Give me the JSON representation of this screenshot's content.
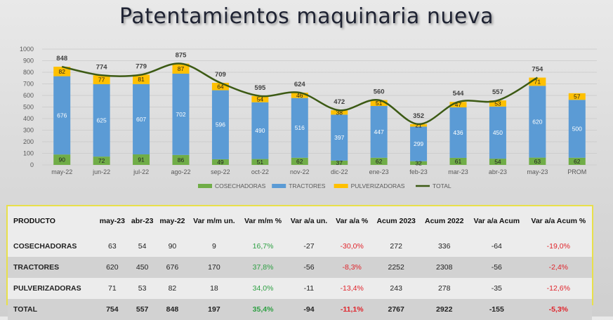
{
  "title": "Patentamientos maquinaria nueva",
  "colors": {
    "cosechadoras": "#70ad47",
    "tractores": "#5b9bd5",
    "pulverizadoras": "#ffc000",
    "total": "#3c5a14",
    "positive": "#2ea043",
    "negative": "#e0242b",
    "table_border": "#e8e04a"
  },
  "chart_data": {
    "type": "bar",
    "stacked": true,
    "categories": [
      "may-22",
      "jun-22",
      "jul-22",
      "ago-22",
      "sep-22",
      "oct-22",
      "nov-22",
      "dic-22",
      "ene-23",
      "feb-23",
      "mar-23",
      "abr-23",
      "may-23",
      "PROM"
    ],
    "series": [
      {
        "name": "COSECHADORAS",
        "values": [
          90,
          72,
          91,
          86,
          49,
          51,
          62,
          37,
          62,
          32,
          61,
          54,
          63,
          62
        ]
      },
      {
        "name": "TRACTORES",
        "values": [
          676,
          625,
          607,
          702,
          596,
          490,
          516,
          397,
          447,
          299,
          436,
          450,
          620,
          500
        ]
      },
      {
        "name": "PULVERIZADORAS",
        "values": [
          82,
          77,
          81,
          87,
          64,
          54,
          46,
          38,
          51,
          21,
          47,
          53,
          71,
          57
        ]
      }
    ],
    "line": {
      "name": "TOTAL",
      "values": [
        848,
        774,
        779,
        875,
        709,
        595,
        624,
        472,
        560,
        352,
        544,
        557,
        754
      ]
    },
    "ylim": [
      0,
      1000
    ],
    "yticks": [
      0,
      100,
      200,
      300,
      400,
      500,
      600,
      700,
      800,
      900,
      1000
    ],
    "grid": true,
    "legend_position": "bottom"
  },
  "table": {
    "headers": [
      "PRODUCTO",
      "may-23",
      "abr-23",
      "may-22",
      "Var m/m un.",
      "Var m/m %",
      "Var a/a un.",
      "Var a/a %",
      "Acum 2023",
      "Acum 2022",
      "Var a/a Acum",
      "Var a/a Acum %"
    ],
    "rows": [
      {
        "cells": [
          "COSECHADORAS",
          "63",
          "54",
          "90",
          "9",
          "16,7%",
          "-27",
          "-30,0%",
          "272",
          "336",
          "-64",
          "-19,0%"
        ]
      },
      {
        "cells": [
          "TRACTORES",
          "620",
          "450",
          "676",
          "170",
          "37,8%",
          "-56",
          "-8,3%",
          "2252",
          "2308",
          "-56",
          "-2,4%"
        ]
      },
      {
        "cells": [
          "PULVERIZADORAS",
          "71",
          "53",
          "82",
          "18",
          "34,0%",
          "-11",
          "-13,4%",
          "243",
          "278",
          "-35",
          "-12,6%"
        ]
      },
      {
        "cells": [
          "TOTAL",
          "754",
          "557",
          "848",
          "197",
          "35,4%",
          "-94",
          "-11,1%",
          "2767",
          "2922",
          "-155",
          "-5,3%"
        ]
      }
    ]
  }
}
